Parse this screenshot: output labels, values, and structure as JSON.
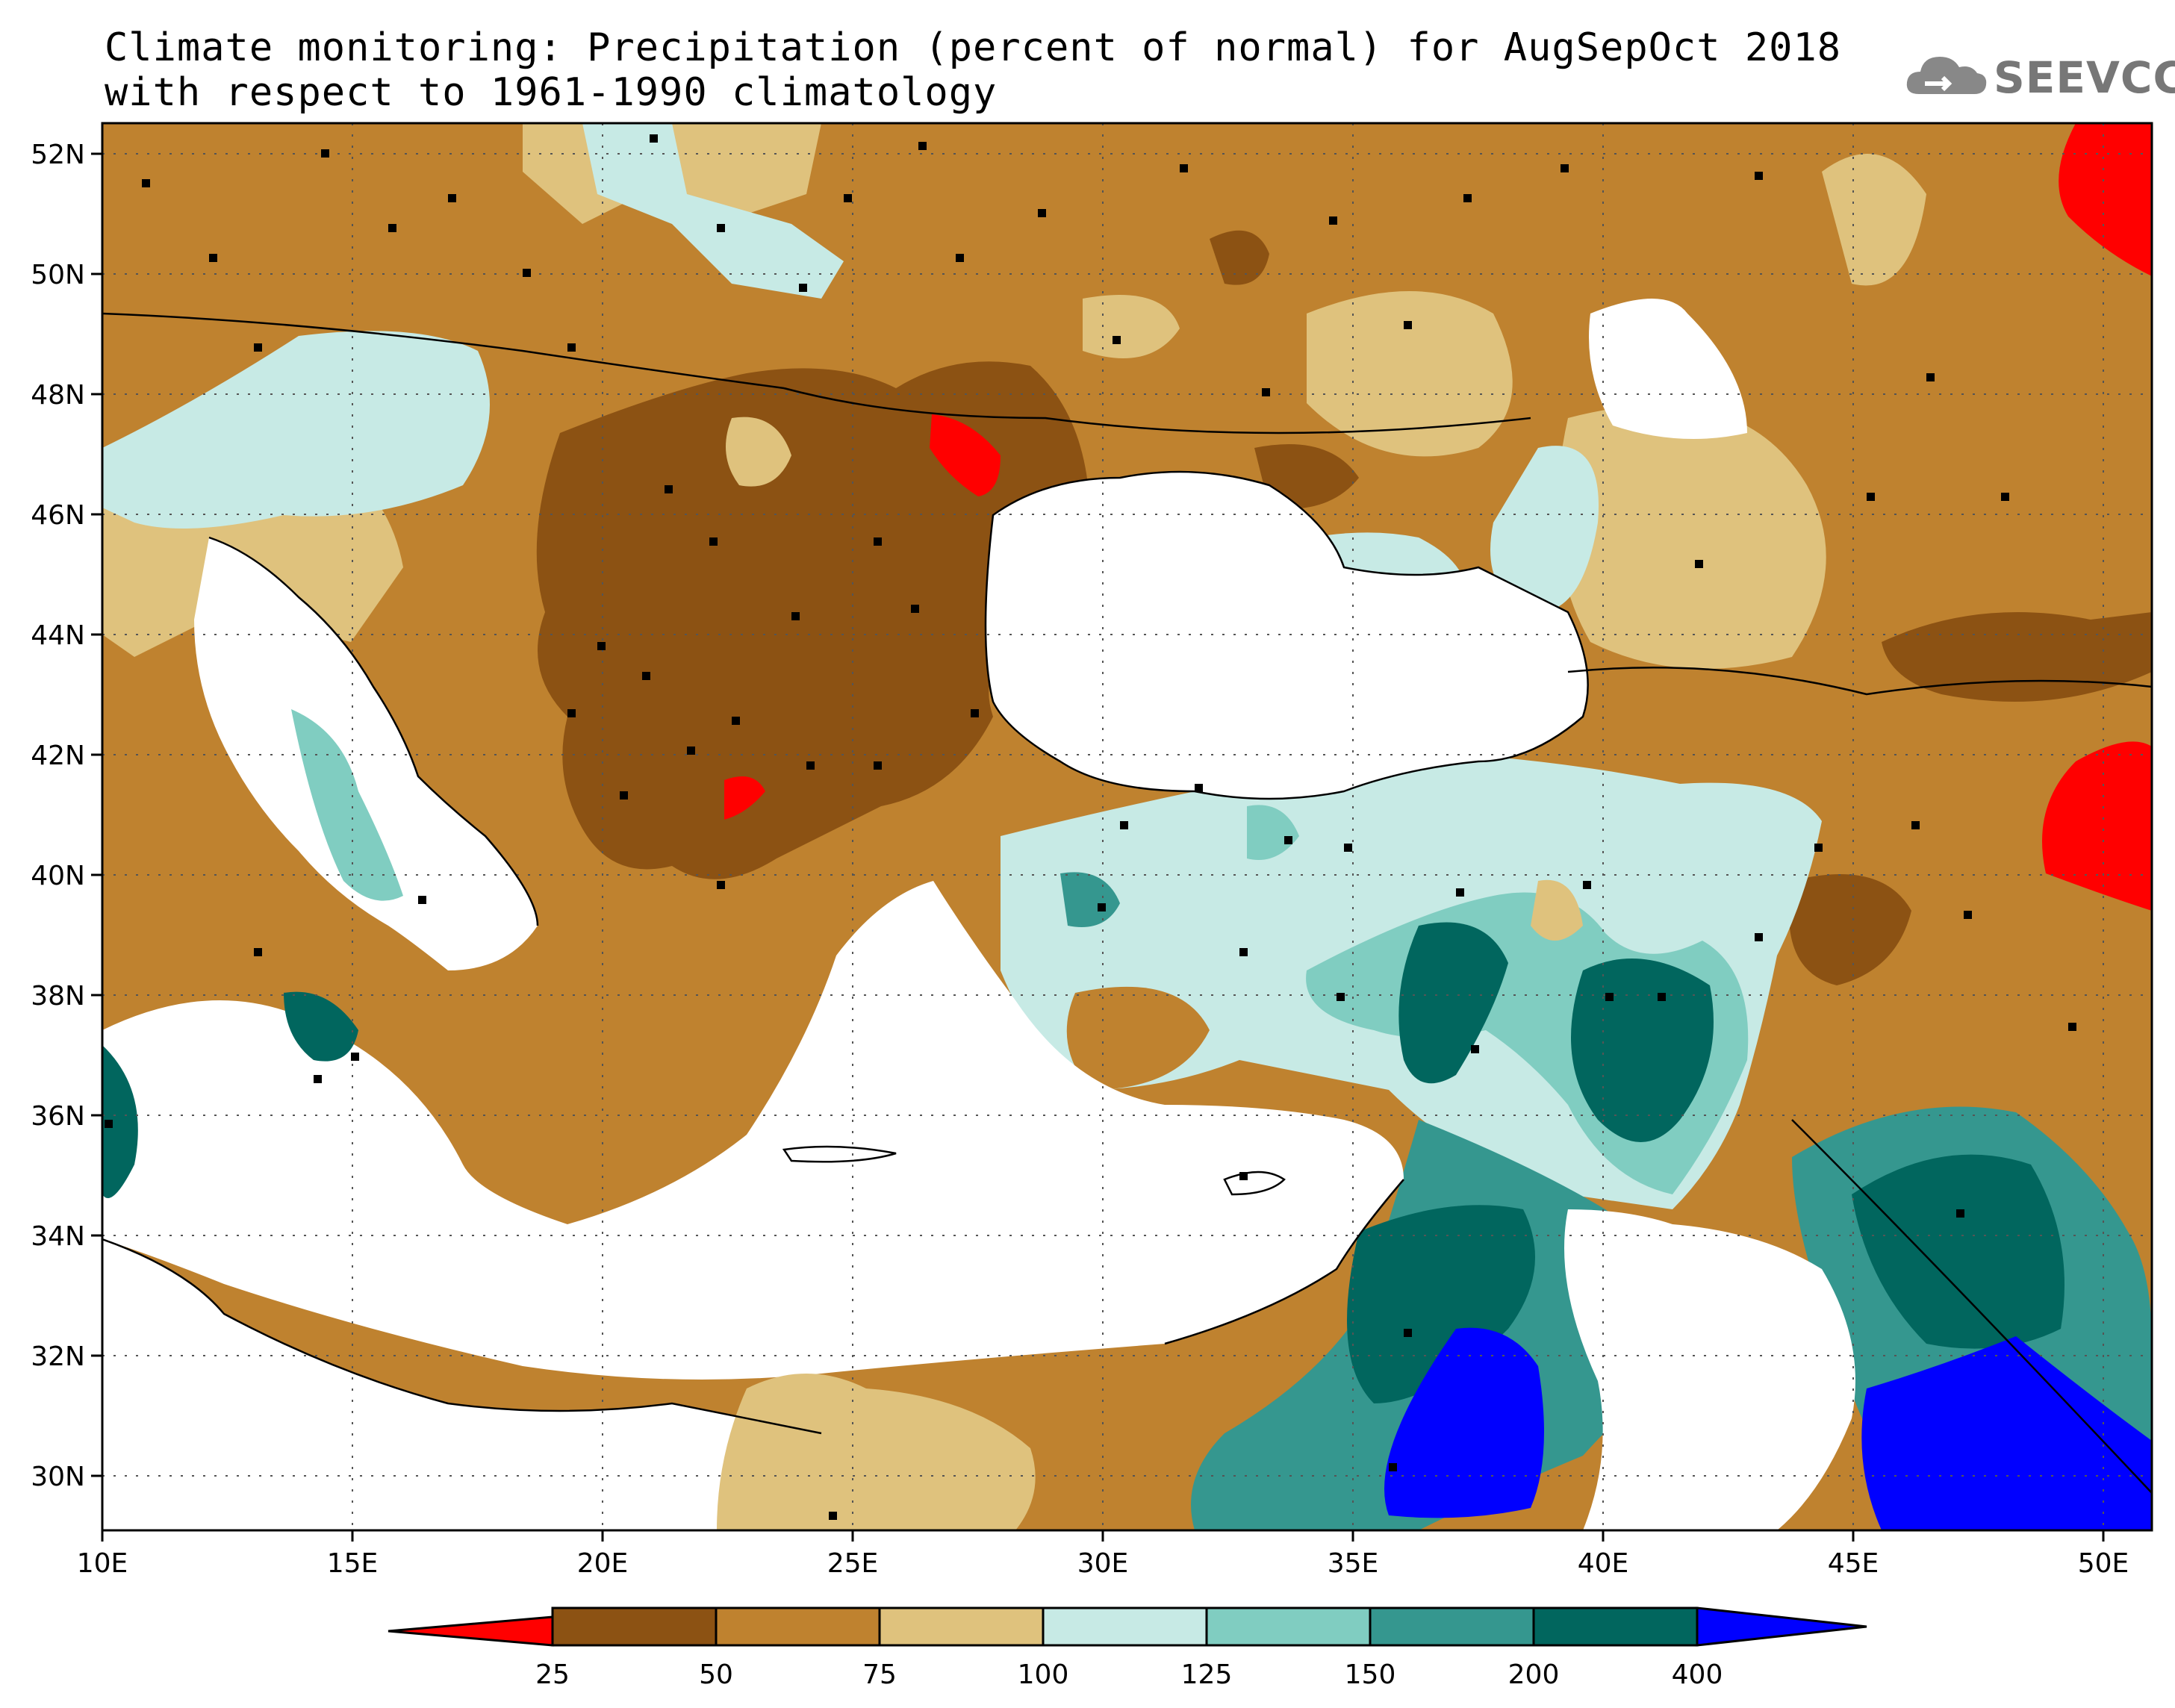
{
  "title": {
    "line1": "Climate monitoring: Precipitation (percent of normal) for AugSepOct 2018",
    "line2": "with respect to 1961-1990 climatology"
  },
  "logo": {
    "text": "SEEVCCC",
    "icon": "cloud-icon",
    "color": "#777777"
  },
  "map": {
    "lon_range": [
      10,
      51
    ],
    "lat_range": [
      29,
      52.5
    ],
    "lat_ticks": [
      "52N",
      "50N",
      "48N",
      "46N",
      "44N",
      "42N",
      "40N",
      "38N",
      "36N",
      "34N",
      "32N",
      "30N"
    ],
    "lon_ticks": [
      "10E",
      "15E",
      "20E",
      "25E",
      "30E",
      "35E",
      "40E",
      "45E",
      "50E"
    ],
    "grid": "dotted",
    "stations": "black square markers"
  },
  "colorbar": {
    "labels": [
      "25",
      "50",
      "75",
      "100",
      "125",
      "150",
      "200",
      "400"
    ],
    "colors": [
      "#ff0000",
      "#8c5213",
      "#bf822f",
      "#dfc27d",
      "#c7eae5",
      "#80cdc1",
      "#35978f",
      "#01665e",
      "#0000ff"
    ]
  }
}
